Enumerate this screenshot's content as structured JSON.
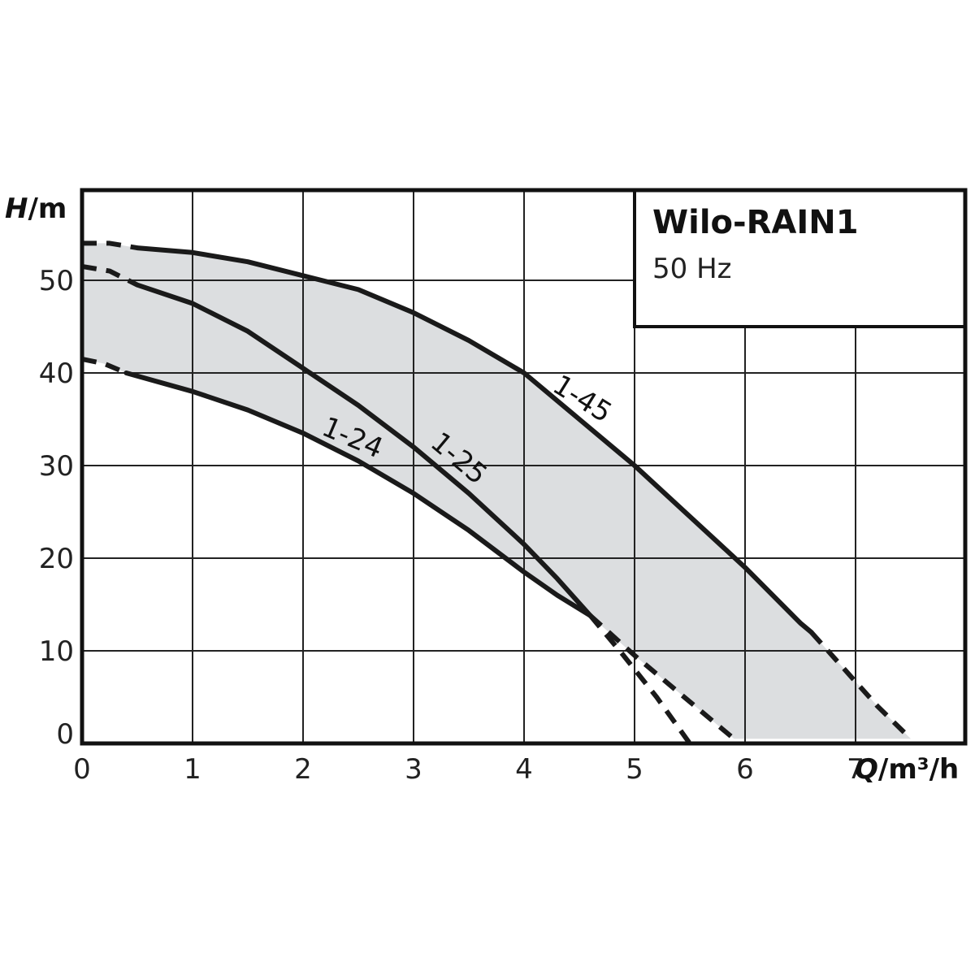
{
  "chart_data": {
    "type": "line",
    "title": "Wilo-RAIN1",
    "subtitle": "50 Hz",
    "xlabel": {
      "symbol": "Q",
      "unit": "/m³/h"
    },
    "ylabel": {
      "symbol": "H",
      "unit": "/m"
    },
    "xlim": [
      0,
      8
    ],
    "ylim": [
      0,
      60
    ],
    "xticks": [
      "0",
      "1",
      "2",
      "3",
      "4",
      "5",
      "6",
      "7"
    ],
    "yticks": [
      "0",
      "10",
      "20",
      "30",
      "40",
      "50"
    ],
    "grid": true,
    "shaded_region": "operating-range",
    "series": [
      {
        "name": "1-45",
        "solid": {
          "x": [
            0.5,
            1,
            1.5,
            2,
            2.5,
            3,
            3.5,
            4,
            4.5,
            5,
            5.5,
            6,
            6.5,
            6.6
          ],
          "y": [
            53.5,
            53,
            52,
            50.5,
            49,
            46.5,
            43.5,
            40,
            35,
            30,
            24.5,
            19,
            13,
            12
          ]
        },
        "dashed": [
          {
            "x": [
              0,
              0.25,
              0.5
            ],
            "y": [
              54,
              54,
              53.5
            ]
          },
          {
            "x": [
              6.6,
              6.9,
              7.2,
              7.5
            ],
            "y": [
              12,
              8,
              4,
              0.5
            ]
          }
        ]
      },
      {
        "name": "1-25",
        "solid": {
          "x": [
            0.5,
            1,
            1.5,
            2,
            2.5,
            3,
            3.5,
            4,
            4.3,
            4.6
          ],
          "y": [
            49.5,
            47.5,
            44.5,
            40.5,
            36.5,
            32,
            27,
            21.5,
            17.8,
            13.8
          ]
        },
        "dashed": [
          {
            "x": [
              0,
              0.25,
              0.5
            ],
            "y": [
              51.5,
              51,
              49.5
            ]
          },
          {
            "x": [
              4.6,
              4.9,
              5.2,
              5.5
            ],
            "y": [
              13.8,
              9.5,
              5,
              0
            ]
          }
        ]
      },
      {
        "name": "1-24",
        "solid": {
          "x": [
            0.4,
            1,
            1.5,
            2,
            2.5,
            3,
            3.5,
            4,
            4.3,
            4.6
          ],
          "y": [
            40,
            38,
            36,
            33.5,
            30.5,
            27,
            23,
            18.5,
            16,
            13.8
          ]
        },
        "dashed": [
          {
            "x": [
              0,
              0.2,
              0.4
            ],
            "y": [
              41.5,
              41,
              40
            ]
          },
          {
            "x": [
              4.6,
              5,
              5.4,
              5.9
            ],
            "y": [
              13.8,
              9.5,
              5.5,
              0.5
            ]
          }
        ]
      }
    ]
  }
}
